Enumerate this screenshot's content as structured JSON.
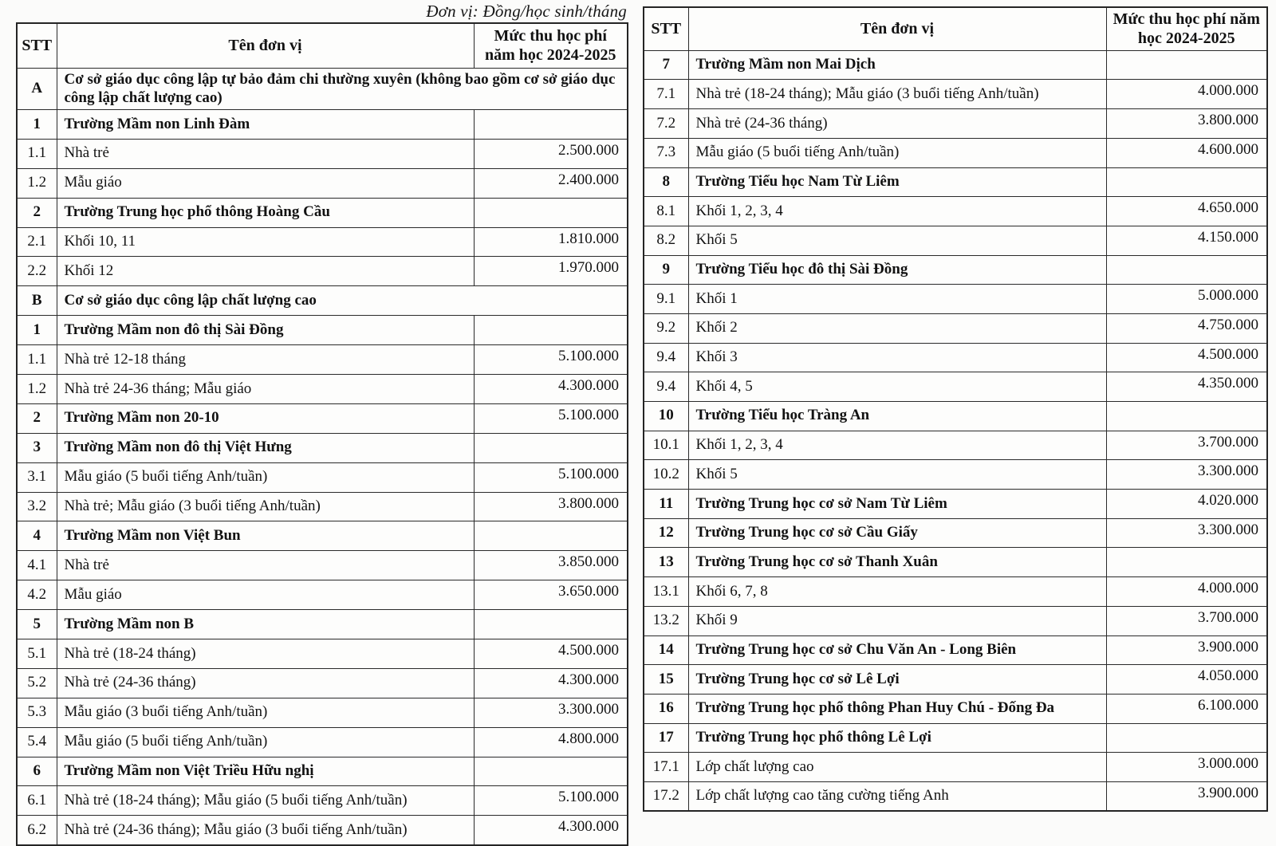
{
  "caption": "Đơn vị: Đồng/học sinh/tháng",
  "tables": [
    {
      "headers": {
        "stt": "STT",
        "name": "Tên đơn vị",
        "fee": "Mức thu học phí năm học 2024-2025"
      },
      "rows": [
        {
          "stt": "A",
          "name": "Cơ sở giáo dục công lập tự bảo đảm chi thường xuyên (không bao gồm cơ sở giáo dục công lập chất lượng cao)",
          "fee": "",
          "bold": true,
          "span": true
        },
        {
          "stt": "1",
          "name": "Trường Mầm non Linh Đàm",
          "fee": "",
          "bold": true
        },
        {
          "stt": "1.1",
          "name": "Nhà trẻ",
          "fee": "2.500.000"
        },
        {
          "stt": "1.2",
          "name": "Mẫu giáo",
          "fee": "2.400.000"
        },
        {
          "stt": "2",
          "name": "Trường Trung học phổ thông Hoàng Cầu",
          "fee": "",
          "bold": true
        },
        {
          "stt": "2.1",
          "name": "Khối 10, 11",
          "fee": "1.810.000"
        },
        {
          "stt": "2.2",
          "name": "Khối 12",
          "fee": "1.970.000"
        },
        {
          "stt": "B",
          "name": "Cơ sở giáo dục công lập chất lượng cao",
          "fee": "",
          "bold": true,
          "span": true
        },
        {
          "stt": "1",
          "name": "Trường Mầm non đô thị Sài Đồng",
          "fee": "",
          "bold": true
        },
        {
          "stt": "1.1",
          "name": "Nhà trẻ 12-18 tháng",
          "fee": "5.100.000"
        },
        {
          "stt": "1.2",
          "name": "Nhà trẻ 24-36 tháng; Mẫu giáo",
          "fee": "4.300.000"
        },
        {
          "stt": "2",
          "name": "Trường Mầm non 20-10",
          "fee": "5.100.000",
          "bold": true
        },
        {
          "stt": "3",
          "name": "Trường Mầm non đô thị Việt Hưng",
          "fee": "",
          "bold": true
        },
        {
          "stt": "3.1",
          "name": "Mẫu giáo (5 buổi tiếng Anh/tuần)",
          "fee": "5.100.000"
        },
        {
          "stt": "3.2",
          "name": "Nhà trẻ; Mẫu giáo (3 buổi tiếng Anh/tuần)",
          "fee": "3.800.000"
        },
        {
          "stt": "4",
          "name": "Trường Mầm non Việt Bun",
          "fee": "",
          "bold": true
        },
        {
          "stt": "4.1",
          "name": "Nhà trẻ",
          "fee": "3.850.000"
        },
        {
          "stt": "4.2",
          "name": "Mẫu giáo",
          "fee": "3.650.000"
        },
        {
          "stt": "5",
          "name": "Trường Mầm non B",
          "fee": "",
          "bold": true
        },
        {
          "stt": "5.1",
          "name": "Nhà trẻ (18-24 tháng)",
          "fee": "4.500.000"
        },
        {
          "stt": "5.2",
          "name": "Nhà trẻ (24-36 tháng)",
          "fee": "4.300.000"
        },
        {
          "stt": "5.3",
          "name": "Mẫu giáo (3 buổi tiếng Anh/tuần)",
          "fee": "3.300.000"
        },
        {
          "stt": "5.4",
          "name": "Mẫu giáo (5 buổi tiếng Anh/tuần)",
          "fee": "4.800.000"
        },
        {
          "stt": "6",
          "name": "Trường Mầm non Việt Triều Hữu nghị",
          "fee": "",
          "bold": true
        },
        {
          "stt": "6.1",
          "name": "Nhà trẻ (18-24 tháng); Mẫu giáo (5 buổi tiếng Anh/tuần)",
          "fee": "5.100.000"
        },
        {
          "stt": "6.2",
          "name": "Nhà trẻ (24-36 tháng); Mẫu giáo (3 buổi tiếng Anh/tuần)",
          "fee": "4.300.000"
        }
      ]
    },
    {
      "headers": {
        "stt": "STT",
        "name": "Tên đơn vị",
        "fee": "Mức thu học phí năm học 2024-2025"
      },
      "rows": [
        {
          "stt": "7",
          "name": "Trường Mầm non Mai Dịch",
          "fee": "",
          "bold": true
        },
        {
          "stt": "7.1",
          "name": "Nhà trẻ (18-24 tháng); Mẫu giáo (3 buổi tiếng Anh/tuần)",
          "fee": "4.000.000"
        },
        {
          "stt": "7.2",
          "name": "Nhà trẻ (24-36 tháng)",
          "fee": "3.800.000"
        },
        {
          "stt": "7.3",
          "name": "Mẫu giáo (5 buổi tiếng Anh/tuần)",
          "fee": "4.600.000"
        },
        {
          "stt": "8",
          "name": "Trường Tiểu học Nam Từ Liêm",
          "fee": "",
          "bold": true
        },
        {
          "stt": "8.1",
          "name": "Khối 1, 2, 3, 4",
          "fee": "4.650.000"
        },
        {
          "stt": "8.2",
          "name": "Khối 5",
          "fee": "4.150.000"
        },
        {
          "stt": "9",
          "name": "Trường Tiểu học đô thị Sài Đồng",
          "fee": "",
          "bold": true
        },
        {
          "stt": "9.1",
          "name": "Khối 1",
          "fee": "5.000.000"
        },
        {
          "stt": "9.2",
          "name": "Khối 2",
          "fee": "4.750.000"
        },
        {
          "stt": "9.4",
          "name": "Khối 3",
          "fee": "4.500.000"
        },
        {
          "stt": "9.4",
          "name": "Khối 4, 5",
          "fee": "4.350.000"
        },
        {
          "stt": "10",
          "name": "Trường Tiểu học Tràng An",
          "fee": "",
          "bold": true
        },
        {
          "stt": "10.1",
          "name": "Khối 1, 2, 3, 4",
          "fee": "3.700.000"
        },
        {
          "stt": "10.2",
          "name": "Khối 5",
          "fee": "3.300.000"
        },
        {
          "stt": "11",
          "name": "Trường Trung học cơ sở Nam Từ Liêm",
          "fee": "4.020.000",
          "bold": true
        },
        {
          "stt": "12",
          "name": "Trường Trung học cơ sở Cầu Giấy",
          "fee": "3.300.000",
          "bold": true
        },
        {
          "stt": "13",
          "name": "Trường Trung học cơ sở Thanh Xuân",
          "fee": "",
          "bold": true
        },
        {
          "stt": "13.1",
          "name": "Khối 6, 7, 8",
          "fee": "4.000.000"
        },
        {
          "stt": "13.2",
          "name": "Khối 9",
          "fee": "3.700.000"
        },
        {
          "stt": "14",
          "name": "Trường Trung học cơ sở Chu Văn An - Long Biên",
          "fee": "3.900.000",
          "bold": true
        },
        {
          "stt": "15",
          "name": "Trường Trung học cơ sở Lê Lợi",
          "fee": "4.050.000",
          "bold": true
        },
        {
          "stt": "16",
          "name": "Trường Trung học phổ thông Phan Huy Chú - Đống Đa",
          "fee": "6.100.000",
          "bold": true
        },
        {
          "stt": "17",
          "name": "Trường Trung học phổ thông Lê Lợi",
          "fee": "",
          "bold": true
        },
        {
          "stt": "17.1",
          "name": "Lớp chất lượng cao",
          "fee": "3.000.000"
        },
        {
          "stt": "17.2",
          "name": "Lớp chất lượng cao tăng cường tiếng Anh",
          "fee": "3.900.000"
        }
      ]
    }
  ]
}
